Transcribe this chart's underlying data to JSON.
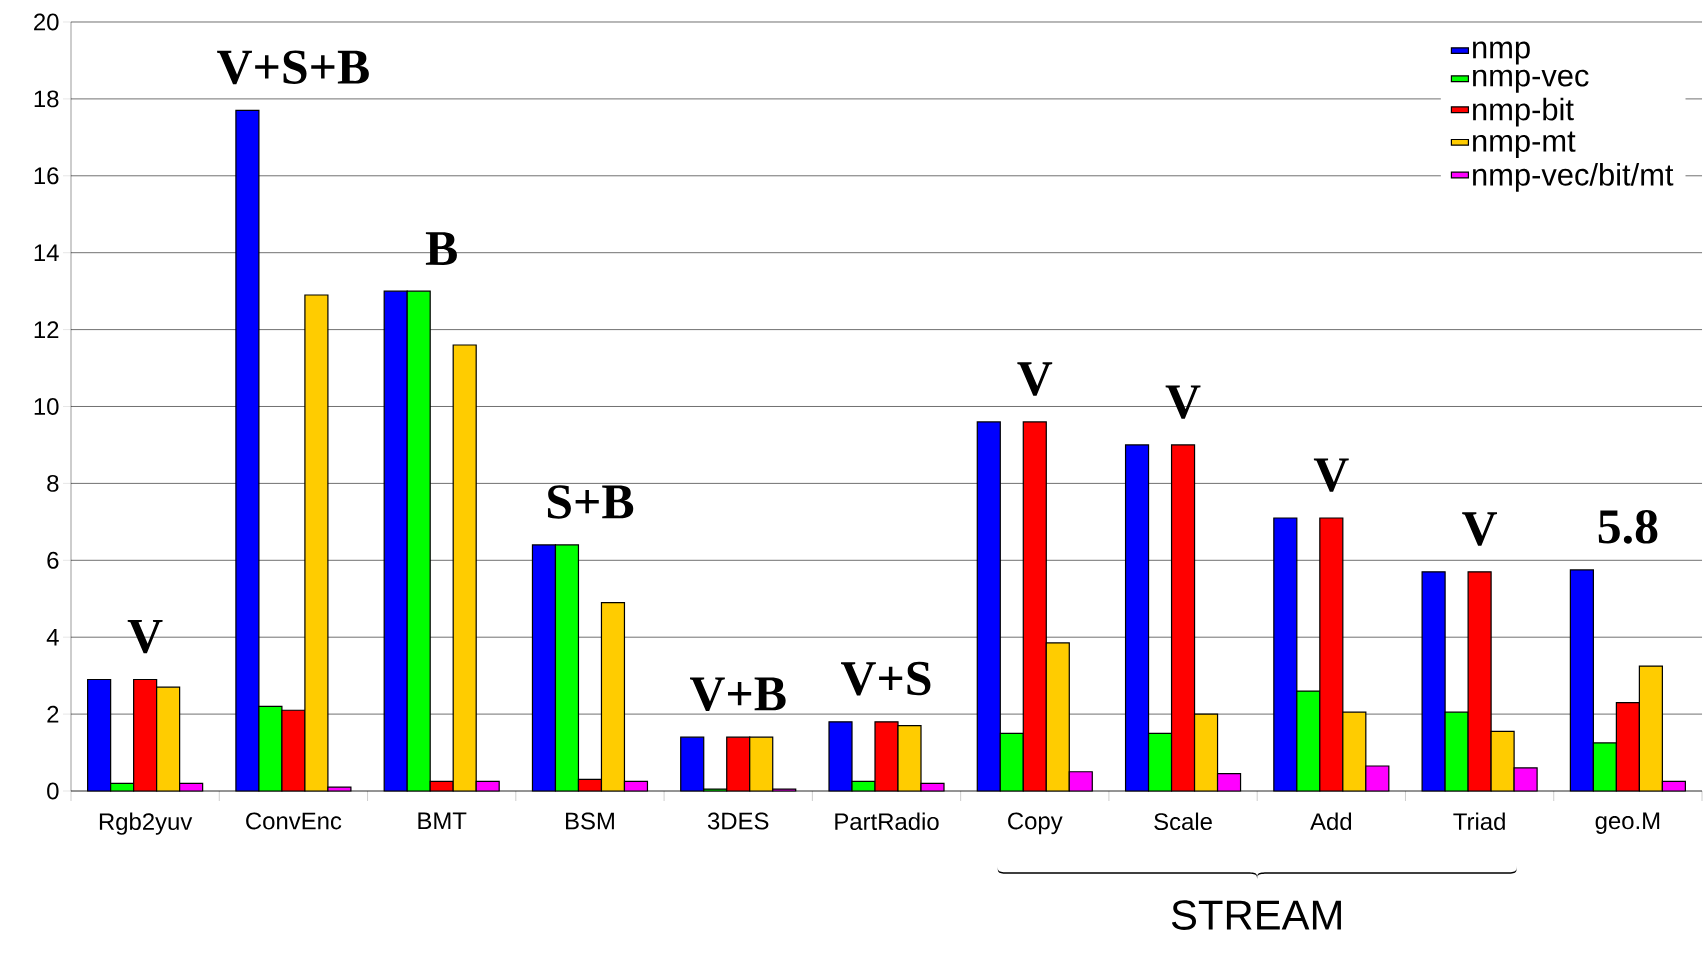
{
  "chart_data": {
    "type": "bar",
    "categories": [
      "Rgb2yuv",
      "ConvEnc",
      "BMT",
      "BSM",
      "3DES",
      "PartRadio",
      "Copy",
      "Scale",
      "Add",
      "Triad",
      "geo.M"
    ],
    "series": [
      {
        "name": "nmp",
        "color": "#0000ff",
        "values": [
          2.9,
          17.7,
          13.0,
          6.4,
          1.4,
          1.8,
          9.6,
          9.0,
          7.1,
          5.7,
          5.75
        ]
      },
      {
        "name": "nmp-vec",
        "color": "#00ff00",
        "values": [
          0.2,
          2.2,
          13.0,
          6.4,
          0.05,
          0.25,
          1.5,
          1.5,
          2.6,
          2.05,
          1.25
        ]
      },
      {
        "name": "nmp-bit",
        "color": "#ff0000",
        "values": [
          2.9,
          2.1,
          0.25,
          0.3,
          1.4,
          1.8,
          9.6,
          9.0,
          7.1,
          5.7,
          2.3
        ]
      },
      {
        "name": "nmp-mt",
        "color": "#ffcc00",
        "values": [
          2.7,
          12.9,
          11.6,
          4.9,
          1.4,
          1.7,
          3.85,
          2.0,
          2.05,
          1.55,
          3.25
        ]
      },
      {
        "name": "nmp-vec/bit/mt",
        "color": "#ff00ff",
        "values": [
          0.2,
          0.1,
          0.25,
          0.25,
          0.05,
          0.2,
          0.5,
          0.45,
          0.65,
          0.6,
          0.25
        ]
      }
    ],
    "ylim": [
      0,
      20
    ],
    "yticks": [
      0,
      2,
      4,
      6,
      8,
      10,
      12,
      14,
      16,
      18,
      20
    ],
    "grid": "y",
    "legend": "top right",
    "annotations": [
      "V",
      "V+S+B",
      "B",
      "S+B",
      "V+B",
      "V+S",
      "V",
      "V",
      "V",
      "V",
      "5.8",
      "STREAM"
    ]
  }
}
